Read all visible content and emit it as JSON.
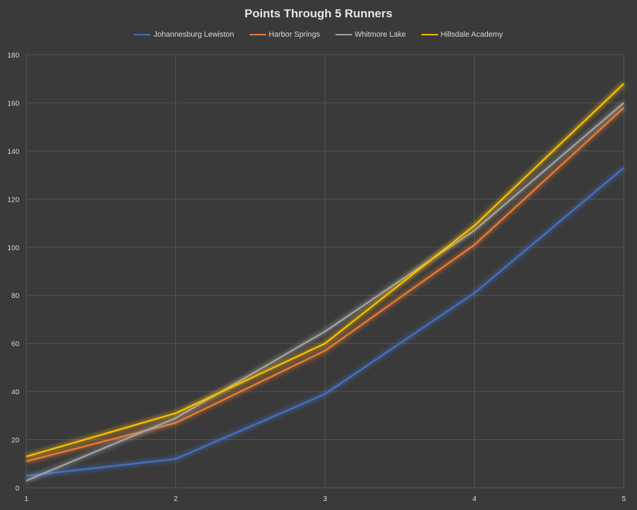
{
  "chart_data": {
    "type": "line",
    "title": "Points Through 5 Runners",
    "xlabel": "",
    "ylabel": "",
    "x": [
      1,
      2,
      3,
      4,
      5
    ],
    "ylim": [
      0,
      180
    ],
    "yticks": [
      0,
      20,
      40,
      60,
      80,
      100,
      120,
      140,
      160,
      180
    ],
    "grid": true,
    "legend_position": "top",
    "series": [
      {
        "name": "Johannesburg Lewiston",
        "color": "#4472c4",
        "values": [
          5,
          12,
          39,
          81,
          133
        ]
      },
      {
        "name": "Harbor Springs",
        "color": "#ed7d31",
        "values": [
          11,
          27,
          57,
          101,
          158
        ]
      },
      {
        "name": "Whitmore Lake",
        "color": "#a5a5a5",
        "values": [
          3,
          29,
          65,
          107,
          160
        ]
      },
      {
        "name": "Hillsdale Academy",
        "color": "#ffc000",
        "values": [
          13,
          31,
          60,
          109,
          168
        ]
      }
    ]
  }
}
